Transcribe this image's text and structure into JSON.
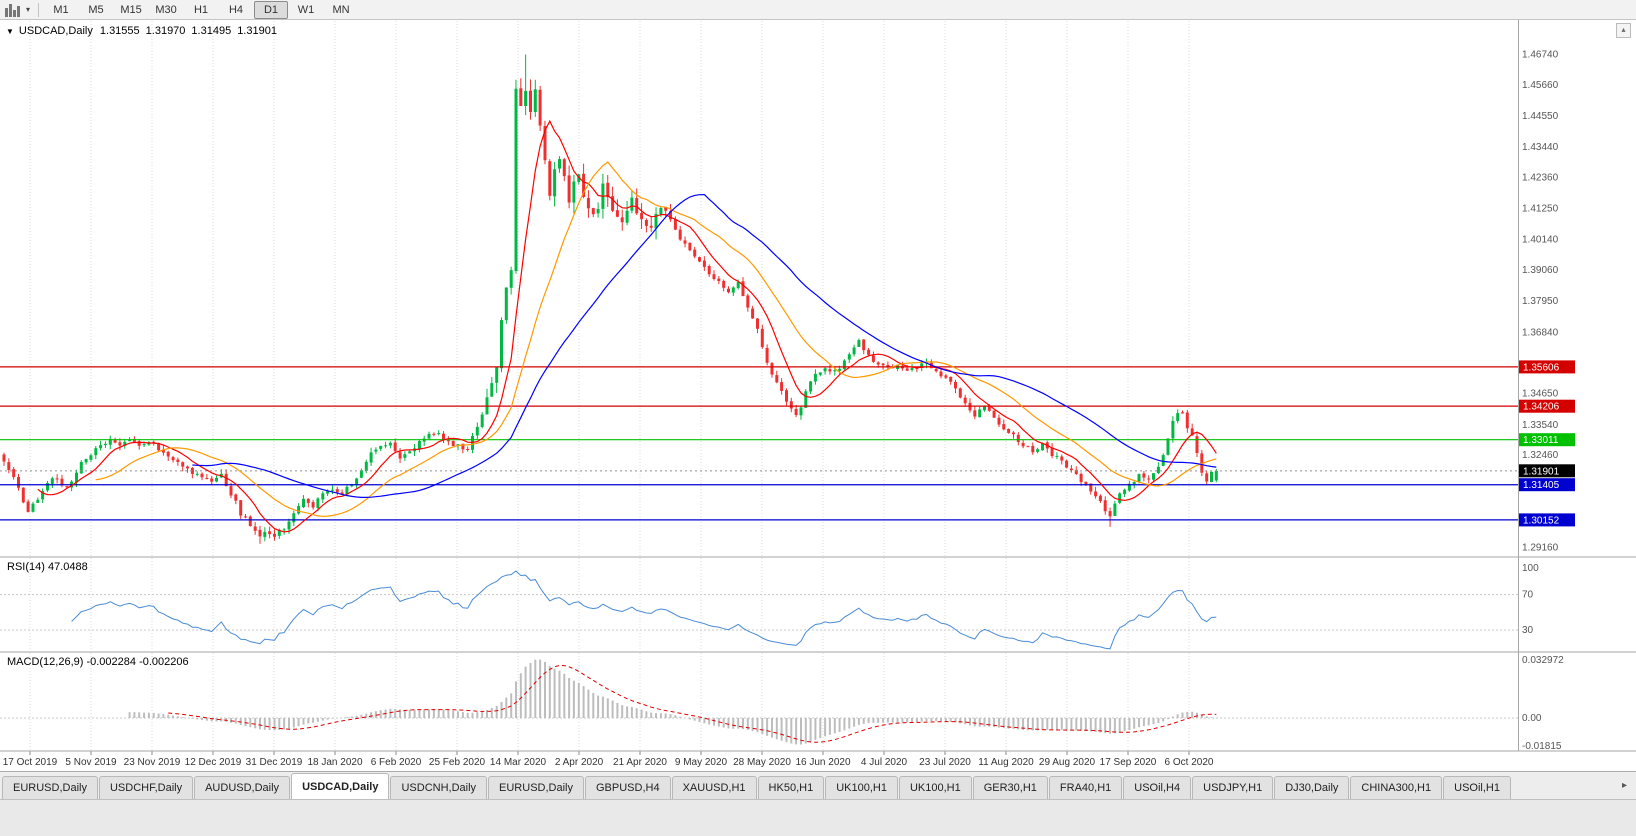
{
  "toolbar": {
    "chart_type_icon": "candlestick-chart",
    "dropdown_icon": "▾",
    "timeframes": [
      "M1",
      "M5",
      "M15",
      "M30",
      "H1",
      "H4",
      "D1",
      "W1",
      "MN"
    ],
    "active_timeframe": "D1"
  },
  "chart_header": {
    "menu_icon": "▼",
    "symbol": "USDCAD,Daily",
    "open": "1.31555",
    "high": "1.31970",
    "low": "1.31495",
    "close": "1.31901",
    "collapse_icon": "▴"
  },
  "rsi_panel": {
    "label": "RSI(14)",
    "value": "47.0488"
  },
  "macd_panel": {
    "label": "MACD(12,26,9)",
    "main": "-0.002284",
    "signal": "-0.002206"
  },
  "tabs": {
    "active_index": 3,
    "scroll_right_icon": "▸",
    "items": [
      "EURUSD,Daily",
      "USDCHF,Daily",
      "AUDUSD,Daily",
      "USDCAD,Daily",
      "USDCNH,Daily",
      "EURUSD,Daily",
      "GBPUSD,H4",
      "XAUUSD,H1",
      "HK50,H1",
      "UK100,H1",
      "UK100,H1",
      "GER30,H1",
      "FRA40,H1",
      "USOil,H4",
      "USDJPY,H1",
      "DJ30,Daily",
      "CHINA300,H1",
      "USOil,H1"
    ]
  },
  "chart_data": {
    "type": "candlestick",
    "symbol": "USDCAD",
    "timeframe": "Daily",
    "last_ohlc": {
      "open": 1.31555,
      "high": 1.3197,
      "low": 1.31495,
      "close": 1.31901
    },
    "price_range": [
      1.289,
      1.479
    ],
    "price_axis_labels": [
      "1.46740",
      "1.45660",
      "1.44550",
      "1.43440",
      "1.42360",
      "1.41250",
      "1.40140",
      "1.39060",
      "1.37950",
      "1.36840",
      "1.34650",
      "1.33540",
      "1.32460",
      "1.29160"
    ],
    "x_axis_labels": [
      "17 Oct 2019",
      "5 Nov 2019",
      "23 Nov 2019",
      "12 Dec 2019",
      "31 Dec 2019",
      "18 Jan 2020",
      "6 Feb 2020",
      "25 Feb 2020",
      "14 Mar 2020",
      "2 Apr 2020",
      "21 Apr 2020",
      "9 May 2020",
      "28 May 2020",
      "16 Jun 2020",
      "4 Jul 2020",
      "23 Jul 2020",
      "11 Aug 2020",
      "29 Aug 2020",
      "17 Sep 2020",
      "6 Oct 2020"
    ],
    "candles_count": 252,
    "close_path_anchors": [
      [
        0,
        1.3225
      ],
      [
        2,
        1.316
      ],
      [
        5,
        1.3048
      ],
      [
        7,
        1.308
      ],
      [
        9,
        1.315
      ],
      [
        11,
        1.3168
      ],
      [
        13,
        1.3125
      ],
      [
        16,
        1.3222
      ],
      [
        19,
        1.3268
      ],
      [
        22,
        1.33
      ],
      [
        24,
        1.3282
      ],
      [
        26,
        1.3305
      ],
      [
        28,
        1.3272
      ],
      [
        30,
        1.3292
      ],
      [
        33,
        1.3258
      ],
      [
        36,
        1.3218
      ],
      [
        40,
        1.3178
      ],
      [
        43,
        1.3158
      ],
      [
        45,
        1.3172
      ],
      [
        47,
        1.3108
      ],
      [
        49,
        1.3042
      ],
      [
        51,
        1.2988
      ],
      [
        53,
        1.2955
      ],
      [
        55,
        1.2968
      ],
      [
        56,
        1.295
      ],
      [
        58,
        1.2988
      ],
      [
        60,
        1.3042
      ],
      [
        62,
        1.3082
      ],
      [
        64,
        1.3068
      ],
      [
        66,
        1.3102
      ],
      [
        68,
        1.3128
      ],
      [
        70,
        1.3108
      ],
      [
        72,
        1.3145
      ],
      [
        74,
        1.3188
      ],
      [
        76,
        1.3252
      ],
      [
        78,
        1.3282
      ],
      [
        80,
        1.3295
      ],
      [
        82,
        1.3238
      ],
      [
        84,
        1.3258
      ],
      [
        87,
        1.3312
      ],
      [
        90,
        1.3322
      ],
      [
        93,
        1.3282
      ],
      [
        96,
        1.3272
      ],
      [
        98,
        1.3352
      ],
      [
        100,
        1.3432
      ],
      [
        102,
        1.356
      ],
      [
        104,
        1.386
      ],
      [
        105,
        1.39
      ],
      [
        106,
        1.456
      ],
      [
        107,
        1.448
      ],
      [
        108,
        1.456
      ],
      [
        109,
        1.447
      ],
      [
        110,
        1.454
      ],
      [
        111,
        1.444
      ],
      [
        112,
        1.428
      ],
      [
        113,
        1.4185
      ],
      [
        114,
        1.4255
      ],
      [
        115,
        1.43
      ],
      [
        116,
        1.423
      ],
      [
        117,
        1.4155
      ],
      [
        118,
        1.4205
      ],
      [
        119,
        1.4255
      ],
      [
        120,
        1.415
      ],
      [
        122,
        1.4085
      ],
      [
        124,
        1.4195
      ],
      [
        126,
        1.413
      ],
      [
        128,
        1.409
      ],
      [
        130,
        1.415
      ],
      [
        132,
        1.41
      ],
      [
        134,
        1.406
      ],
      [
        136,
        1.412
      ],
      [
        138,
        1.4095
      ],
      [
        140,
        1.402
      ],
      [
        142,
        1.398
      ],
      [
        144,
        1.3945
      ],
      [
        146,
        1.3895
      ],
      [
        148,
        1.3865
      ],
      [
        150,
        1.3825
      ],
      [
        152,
        1.3855
      ],
      [
        154,
        1.3775
      ],
      [
        156,
        1.3695
      ],
      [
        158,
        1.357
      ],
      [
        160,
        1.35
      ],
      [
        162,
        1.3435
      ],
      [
        164,
        1.339
      ],
      [
        165,
        1.3425
      ],
      [
        166,
        1.3478
      ],
      [
        168,
        1.3528
      ],
      [
        170,
        1.3558
      ],
      [
        172,
        1.3542
      ],
      [
        174,
        1.3578
      ],
      [
        176,
        1.3622
      ],
      [
        177,
        1.3652
      ],
      [
        179,
        1.3602
      ],
      [
        181,
        1.3572
      ],
      [
        183,
        1.3552
      ],
      [
        185,
        1.3562
      ],
      [
        187,
        1.3548
      ],
      [
        189,
        1.3562
      ],
      [
        191,
        1.3582
      ],
      [
        193,
        1.3548
      ],
      [
        195,
        1.3522
      ],
      [
        197,
        1.3482
      ],
      [
        199,
        1.3422
      ],
      [
        201,
        1.3392
      ],
      [
        203,
        1.3418
      ],
      [
        205,
        1.3372
      ],
      [
        207,
        1.3342
      ],
      [
        209,
        1.3312
      ],
      [
        211,
        1.3282
      ],
      [
        213,
        1.3258
      ],
      [
        215,
        1.3288
      ],
      [
        217,
        1.3248
      ],
      [
        219,
        1.3222
      ],
      [
        221,
        1.3192
      ],
      [
        223,
        1.3158
      ],
      [
        225,
        1.3122
      ],
      [
        227,
        1.3082
      ],
      [
        229,
        1.3022
      ],
      [
        230,
        1.3072
      ],
      [
        231,
        1.3112
      ],
      [
        233,
        1.3142
      ],
      [
        235,
        1.3172
      ],
      [
        237,
        1.3158
      ],
      [
        239,
        1.32
      ],
      [
        241,
        1.33
      ],
      [
        242,
        1.336
      ],
      [
        243,
        1.34
      ],
      [
        244,
        1.339
      ],
      [
        245,
        1.3342
      ],
      [
        246,
        1.3312
      ],
      [
        247,
        1.3252
      ],
      [
        248,
        1.3182
      ],
      [
        249,
        1.3148
      ],
      [
        250,
        1.3186
      ],
      [
        251,
        1.31901
      ]
    ],
    "key_extremes": {
      "spike_high": {
        "day": 108,
        "price": 1.4674
      },
      "dec_low": {
        "day": 53,
        "price": 1.293
      },
      "sep_low": {
        "day": 229,
        "price": 1.299
      }
    },
    "horizontal_lines": [
      {
        "price": 1.35606,
        "color": "#D40000",
        "badge": "1.35606"
      },
      {
        "price": 1.34206,
        "color": "#D40000",
        "badge": "1.34206"
      },
      {
        "price": 1.33011,
        "color": "#00C000",
        "badge": "1.33011"
      },
      {
        "price": 1.31405,
        "color": "#0000D0",
        "badge": "1.31405"
      },
      {
        "price": 1.30152,
        "color": "#0000D0",
        "badge": "1.30152"
      }
    ],
    "current_price": {
      "price": 1.31901,
      "badge": "1.31901",
      "line_color": "#909090",
      "badge_color": "#000000"
    },
    "colors": {
      "up": "#00B843",
      "down": "#F03030",
      "background": "#FFFFFF",
      "grid": "#DCDCDC",
      "axis_text": "#555555"
    },
    "moving_averages": [
      {
        "period": 8,
        "color": "#FF0000"
      },
      {
        "period": 20,
        "color": "#FF9900"
      },
      {
        "period": 40,
        "color": "#0000FF"
      }
    ],
    "rsi": {
      "period": 14,
      "label": "RSI(14)",
      "current": "47.0488",
      "levels": [
        "100",
        "70",
        "30"
      ],
      "line_color": "#4A8BD5"
    },
    "macd": {
      "label": "MACD(12,26,9)",
      "main": "-0.002284",
      "signal": "-0.002206",
      "axis_labels": [
        "0.032972",
        "0.00",
        "-0.01815"
      ],
      "histogram_color": "#BDBDBD",
      "signal_color": "#E00000"
    }
  }
}
